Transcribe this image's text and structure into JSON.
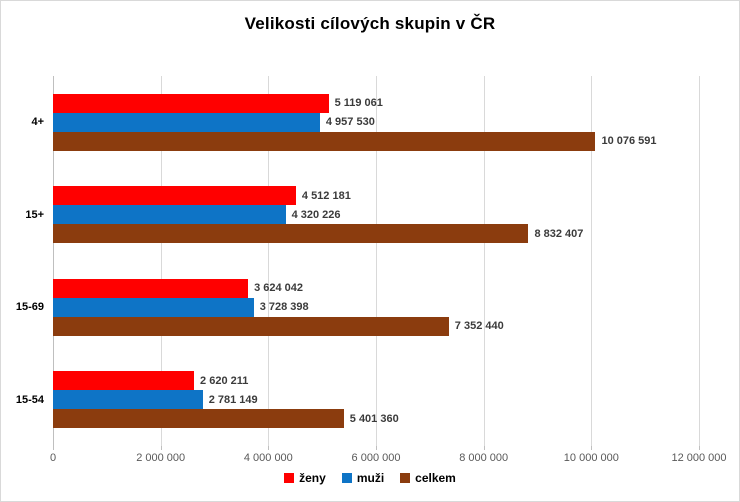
{
  "title": "Velikosti cílových skupin v ČR",
  "chart_data": {
    "type": "bar",
    "orientation": "horizontal",
    "title": "Velikosti cílových skupin v ČR",
    "categories": [
      "4+",
      "15+",
      "15-69",
      "15-54"
    ],
    "series": [
      {
        "name": "ženy",
        "color": "#FF0000",
        "values": [
          5119061,
          4512181,
          3624042,
          2620211
        ],
        "labels": [
          "5 119 061",
          "4 512 181",
          "3 624 042",
          "2 620 211"
        ]
      },
      {
        "name": "muži",
        "color": "#0E74C6",
        "values": [
          4957530,
          4320226,
          3728398,
          2781149
        ],
        "labels": [
          "4 957 530",
          "4 320 226",
          "3 728 398",
          "2 781 149"
        ]
      },
      {
        "name": "celkem",
        "color": "#8B3C0E",
        "values": [
          10076591,
          8832407,
          7352440,
          5401360
        ],
        "labels": [
          "10 076 591",
          "8 832 407",
          "7 352 440",
          "5 401 360"
        ]
      }
    ],
    "xlabel": "",
    "ylabel": "",
    "xlim": [
      0,
      12000000
    ],
    "x_ticks": [
      {
        "value": 0,
        "label": "0"
      },
      {
        "value": 2000000,
        "label": "2 000 000"
      },
      {
        "value": 4000000,
        "label": "4 000 000"
      },
      {
        "value": 6000000,
        "label": "6 000 000"
      },
      {
        "value": 8000000,
        "label": "8 000 000"
      },
      {
        "value": 10000000,
        "label": "10 000 000"
      },
      {
        "value": 12000000,
        "label": "12 000 000"
      }
    ],
    "grid": true,
    "legend_position": "bottom"
  },
  "legend": {
    "items": [
      {
        "label": "ženy",
        "color": "#FF0000"
      },
      {
        "label": "muži",
        "color": "#0E74C6"
      },
      {
        "label": "celkem",
        "color": "#8B3C0E"
      }
    ]
  },
  "style": {
    "background": "#FFFFFF",
    "border_color": "#D9D9D9",
    "gridline_color": "#D9D9D9",
    "axis_line_color": "#BFBFBF",
    "tick_label_color": "#595959",
    "data_label_color": "#3B3B3B"
  }
}
